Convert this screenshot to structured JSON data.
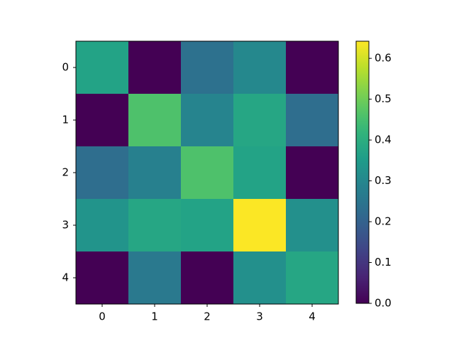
{
  "chart_data": {
    "type": "heatmap",
    "colormap": "viridis",
    "xticks": [
      0,
      1,
      2,
      3,
      4
    ],
    "yticks": [
      0,
      1,
      2,
      3,
      4
    ],
    "values": [
      [
        0.37,
        0,
        0.24,
        0.3,
        0
      ],
      [
        0,
        0.46,
        0.29,
        0.38,
        0.23
      ],
      [
        0.23,
        0.28,
        0.46,
        0.37,
        0
      ],
      [
        0.33,
        0.38,
        0.37,
        0.64,
        0.32
      ],
      [
        0,
        0.26,
        0,
        0.32,
        0.38
      ]
    ],
    "colorbar_lim": [
      0,
      0.642
    ],
    "colorbar_ticks": [
      {
        "value": 0,
        "label": "0.0"
      },
      {
        "value": 0.1,
        "label": "0.1"
      },
      {
        "value": 0.2,
        "label": "0.2"
      },
      {
        "value": 0.3,
        "label": "0.3"
      },
      {
        "value": 0.4,
        "label": "0.4"
      },
      {
        "value": 0.5,
        "label": "0.5"
      },
      {
        "value": 0.6,
        "label": "0.6"
      }
    ]
  }
}
